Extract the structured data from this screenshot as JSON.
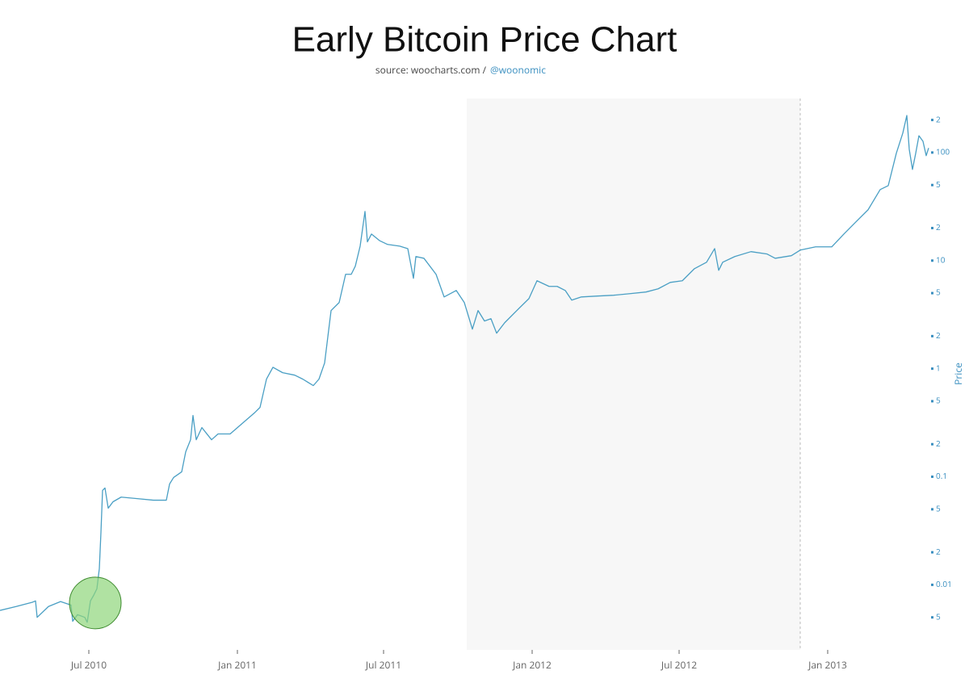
{
  "chart_data": {
    "type": "line",
    "title": "Early Bitcoin Price Chart",
    "source_prefix": "source: woocharts.com /",
    "source_handle": "@woonomic",
    "y_label": "Price",
    "y_scale": "log",
    "y_axis_side": "right",
    "xlim": [
      "2010-03-13",
      "2013-05-06"
    ],
    "xticks": [
      {
        "value": "2010-07-01",
        "label": "Jul 2010"
      },
      {
        "value": "2011-01-01",
        "label": "Jan 2011"
      },
      {
        "value": "2011-07-01",
        "label": "Jul 2011"
      },
      {
        "value": "2012-01-01",
        "label": "Jan 2012"
      },
      {
        "value": "2012-07-01",
        "label": "Jul 2012"
      },
      {
        "value": "2013-01-01",
        "label": "Jan 2013"
      }
    ],
    "ylim": [
      0.0025,
      316
    ],
    "yticks": [
      {
        "value": 200,
        "label": "2"
      },
      100,
      {
        "value": 50,
        "label": "5"
      },
      {
        "value": 20,
        "label": "2"
      },
      10,
      5,
      2,
      1,
      {
        "value": 0.5,
        "label": "5"
      },
      {
        "value": 0.2,
        "label": "2"
      },
      0.1,
      {
        "value": 0.05,
        "label": "5"
      },
      {
        "value": 0.02,
        "label": "2"
      },
      0.01,
      {
        "value": 0.005,
        "label": "5"
      }
    ],
    "shaded_range": [
      "2011-10-12",
      "2012-11-28"
    ],
    "highlight": {
      "x": "2010-07-09",
      "y": 0.0068,
      "color": "#8fd67a"
    },
    "x": [
      "2010-03-13",
      "2010-04-02",
      "2010-04-22",
      "2010-04-26",
      "2010-04-28",
      "2010-05-12",
      "2010-05-27",
      "2010-06-09",
      "2010-06-11",
      "2010-06-17",
      "2010-06-26",
      "2010-06-29",
      "2010-07-03",
      "2010-07-07",
      "2010-07-11",
      "2010-07-14",
      "2010-07-16",
      "2010-07-18",
      "2010-07-21",
      "2010-07-25",
      "2010-07-31",
      "2010-08-10",
      "2010-08-30",
      "2010-09-19",
      "2010-10-05",
      "2010-10-09",
      "2010-10-14",
      "2010-10-24",
      "2010-10-29",
      "2010-11-04",
      "2010-11-07",
      "2010-11-11",
      "2010-11-18",
      "2010-11-30",
      "2010-12-08",
      "2010-12-23",
      "2011-01-07",
      "2011-01-22",
      "2011-01-29",
      "2011-02-06",
      "2011-02-14",
      "2011-02-26",
      "2011-03-13",
      "2011-03-23",
      "2011-04-05",
      "2011-04-12",
      "2011-04-19",
      "2011-04-27",
      "2011-05-07",
      "2011-05-15",
      "2011-05-22",
      "2011-05-27",
      "2011-06-02",
      "2011-06-08",
      "2011-06-11",
      "2011-06-16",
      "2011-06-26",
      "2011-07-06",
      "2011-07-21",
      "2011-07-31",
      "2011-08-07",
      "2011-08-10",
      "2011-08-20",
      "2011-09-04",
      "2011-09-14",
      "2011-09-29",
      "2011-10-09",
      "2011-10-19",
      "2011-10-26",
      "2011-11-03",
      "2011-11-11",
      "2011-11-18",
      "2011-11-28",
      "2011-12-13",
      "2011-12-28",
      "2012-01-07",
      "2012-01-22",
      "2012-02-01",
      "2012-02-11",
      "2012-02-19",
      "2012-03-02",
      "2012-03-22",
      "2012-04-11",
      "2012-05-01",
      "2012-05-21",
      "2012-06-05",
      "2012-06-20",
      "2012-07-05",
      "2012-07-20",
      "2012-08-04",
      "2012-08-14",
      "2012-08-19",
      "2012-08-24",
      "2012-09-08",
      "2012-09-28",
      "2012-10-18",
      "2012-10-28",
      "2012-11-17",
      "2012-11-28",
      "2012-12-17",
      "2013-01-06",
      "2013-01-21",
      "2013-02-05",
      "2013-02-20",
      "2013-03-07",
      "2013-03-17",
      "2013-03-27",
      "2013-04-04",
      "2013-04-09",
      "2013-04-12",
      "2013-04-16",
      "2013-04-20",
      "2013-04-24",
      "2013-04-29",
      "2013-05-03",
      "2013-05-06"
    ],
    "series": [
      {
        "name": "Price",
        "color": "#4a9fc4",
        "values": [
          0.0058,
          0.0063,
          0.0069,
          0.0071,
          0.005,
          0.0063,
          0.007,
          0.0065,
          0.0046,
          0.0053,
          0.005,
          0.0045,
          0.0071,
          0.008,
          0.0092,
          0.0141,
          0.0305,
          0.0747,
          0.0787,
          0.0512,
          0.0587,
          0.0648,
          0.0627,
          0.0607,
          0.0607,
          0.0857,
          0.0984,
          0.111,
          0.17,
          0.22,
          0.369,
          0.22,
          0.285,
          0.22,
          0.249,
          0.249,
          0.311,
          0.389,
          0.438,
          0.8,
          1.03,
          0.918,
          0.871,
          0.8,
          0.697,
          0.8,
          1.13,
          3.45,
          4.09,
          7.47,
          7.47,
          8.88,
          13.6,
          28.5,
          14.9,
          17.6,
          15.3,
          14.1,
          13.6,
          12.9,
          6.85,
          10.9,
          10.5,
          7.47,
          4.61,
          5.29,
          4.09,
          2.32,
          3.45,
          2.76,
          2.9,
          2.13,
          2.66,
          3.45,
          4.45,
          6.51,
          5.77,
          5.77,
          5.29,
          4.31,
          4.61,
          4.7,
          4.78,
          4.94,
          5.12,
          5.48,
          6.28,
          6.51,
          8.42,
          9.65,
          12.9,
          8.13,
          9.65,
          10.9,
          12.1,
          11.5,
          10.5,
          11.1,
          12.5,
          13.4,
          13.4,
          17.6,
          22.8,
          29.5,
          45.4,
          49.4,
          98.4,
          151,
          220,
          107,
          69.7,
          98.4,
          143,
          127,
          93.5,
          110
        ]
      }
    ]
  }
}
